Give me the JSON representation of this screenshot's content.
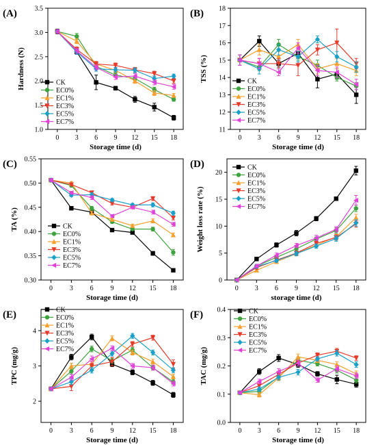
{
  "chart_data": [
    {
      "type": "line",
      "panel": "(A)",
      "xlabel": "Storage time (d)",
      "ylabel": "Hardness (N)",
      "x": [
        0,
        3,
        6,
        9,
        12,
        15,
        18
      ],
      "ylim": [
        1.0,
        3.5
      ],
      "yticks": [
        "1.0",
        "1.5",
        "2.0",
        "2.5",
        "3.0",
        "3.5"
      ],
      "legend_position": "bottom-left",
      "series": [
        {
          "name": "CK",
          "color": "#000000",
          "marker": "square",
          "values": [
            3.02,
            2.6,
            1.97,
            1.85,
            1.62,
            1.46,
            1.24
          ],
          "err": [
            0.05,
            0.05,
            0.15,
            0.04,
            0.06,
            0.08,
            0.05
          ]
        },
        {
          "name": "EC0%",
          "color": "#3ea33e",
          "marker": "circle",
          "values": [
            3.02,
            2.92,
            2.3,
            2.12,
            2.05,
            1.82,
            1.62
          ],
          "err": [
            0.04,
            0.06,
            0.05,
            0.04,
            0.04,
            0.05,
            0.04
          ]
        },
        {
          "name": "EC1%",
          "color": "#f5a030",
          "marker": "triangle-up",
          "values": [
            3.02,
            2.82,
            2.35,
            2.22,
            2.0,
            1.75,
            1.7
          ],
          "err": [
            0.04,
            0.05,
            0.05,
            0.05,
            0.05,
            0.05,
            0.04
          ]
        },
        {
          "name": "EC3%",
          "color": "#e63a2a",
          "marker": "triangle-down",
          "values": [
            3.02,
            2.65,
            2.35,
            2.32,
            2.23,
            2.15,
            2.0
          ],
          "err": [
            0.04,
            0.05,
            0.05,
            0.05,
            0.05,
            0.05,
            0.05
          ]
        },
        {
          "name": "EC5%",
          "color": "#1aa0c8",
          "marker": "diamond",
          "values": [
            3.02,
            2.6,
            2.25,
            2.23,
            2.22,
            2.05,
            2.1
          ],
          "err": [
            0.04,
            0.05,
            0.05,
            0.05,
            0.05,
            0.05,
            0.04
          ]
        },
        {
          "name": "EC7%",
          "color": "#e042d8",
          "marker": "triangle-left",
          "values": [
            3.02,
            2.62,
            2.28,
            2.08,
            2.1,
            1.97,
            1.88
          ],
          "err": [
            0.04,
            0.05,
            0.05,
            0.05,
            0.05,
            0.05,
            0.05
          ]
        }
      ]
    },
    {
      "type": "line",
      "panel": "(B)",
      "xlabel": "Storage time (d)",
      "ylabel": "TSS (%)",
      "x": [
        0,
        3,
        6,
        9,
        12,
        15,
        18
      ],
      "ylim": [
        11,
        18
      ],
      "yticks": [
        "11",
        "12",
        "13",
        "14",
        "15",
        "16",
        "17",
        "18"
      ],
      "legend_position": "bottom-left",
      "series": [
        {
          "name": "CK",
          "color": "#000000",
          "marker": "square",
          "values": [
            15.0,
            16.1,
            14.8,
            15.4,
            13.9,
            14.2,
            13.0
          ],
          "err": [
            0.3,
            0.3,
            0.2,
            0.3,
            0.5,
            0.3,
            0.5
          ]
        },
        {
          "name": "EC0%",
          "color": "#3ea33e",
          "marker": "circle",
          "values": [
            15.0,
            14.6,
            15.9,
            15.2,
            14.7,
            14.0,
            13.5
          ],
          "err": [
            0.3,
            0.2,
            0.3,
            0.2,
            0.3,
            0.2,
            0.2
          ]
        },
        {
          "name": "EC1%",
          "color": "#f5a030",
          "marker": "triangle-up",
          "values": [
            15.0,
            15.6,
            15.2,
            15.9,
            14.5,
            14.8,
            14.4
          ],
          "err": [
            0.3,
            0.3,
            0.3,
            0.3,
            0.3,
            0.3,
            0.3
          ]
        },
        {
          "name": "EC3%",
          "color": "#e63a2a",
          "marker": "triangle-down",
          "values": [
            15.0,
            14.8,
            14.8,
            14.7,
            15.6,
            16.0,
            14.8
          ],
          "err": [
            0.3,
            0.3,
            0.3,
            0.6,
            0.3,
            0.8,
            0.3
          ]
        },
        {
          "name": "EC5%",
          "color": "#1aa0c8",
          "marker": "diamond",
          "values": [
            15.0,
            14.5,
            15.6,
            15.2,
            16.2,
            15.2,
            14.6
          ],
          "err": [
            0.3,
            0.3,
            0.3,
            0.3,
            0.2,
            0.3,
            0.3
          ]
        },
        {
          "name": "EC7%",
          "color": "#e042d8",
          "marker": "triangle-left",
          "values": [
            15.0,
            14.8,
            14.3,
            15.7,
            14.4,
            14.3,
            13.6
          ],
          "err": [
            0.3,
            0.3,
            0.2,
            0.3,
            0.3,
            0.3,
            0.3
          ]
        }
      ]
    },
    {
      "type": "line",
      "panel": "(C)",
      "xlabel": "Storage time (d)",
      "ylabel": "TA (%)",
      "x": [
        0,
        3,
        6,
        9,
        12,
        15,
        18
      ],
      "ylim": [
        0.3,
        0.55
      ],
      "yticks": [
        "0.30",
        "0.35",
        "0.40",
        "0.45",
        "0.50",
        "0.55"
      ],
      "legend_position": "bottom-left",
      "series": [
        {
          "name": "CK",
          "color": "#000000",
          "marker": "square",
          "values": [
            0.506,
            0.448,
            0.44,
            0.403,
            0.398,
            0.355,
            0.32
          ],
          "err": [
            0.003,
            0.003,
            0.004,
            0.003,
            0.003,
            0.004,
            0.003
          ]
        },
        {
          "name": "EC0%",
          "color": "#3ea33e",
          "marker": "circle",
          "values": [
            0.506,
            0.495,
            0.448,
            0.42,
            0.405,
            0.405,
            0.357
          ],
          "err": [
            0.003,
            0.003,
            0.004,
            0.003,
            0.003,
            0.004,
            0.006
          ]
        },
        {
          "name": "EC1%",
          "color": "#f5a030",
          "marker": "triangle-up",
          "values": [
            0.506,
            0.5,
            0.438,
            0.425,
            0.412,
            0.422,
            0.393
          ],
          "err": [
            0.003,
            0.003,
            0.004,
            0.003,
            0.003,
            0.004,
            0.004
          ]
        },
        {
          "name": "EC3%",
          "color": "#e63a2a",
          "marker": "triangle-down",
          "values": [
            0.506,
            0.497,
            0.48,
            0.458,
            0.45,
            0.468,
            0.428
          ],
          "err": [
            0.003,
            0.003,
            0.004,
            0.003,
            0.003,
            0.004,
            0.004
          ]
        },
        {
          "name": "EC5%",
          "color": "#1aa0c8",
          "marker": "diamond",
          "values": [
            0.506,
            0.475,
            0.476,
            0.465,
            0.455,
            0.455,
            0.438
          ],
          "err": [
            0.003,
            0.003,
            0.004,
            0.003,
            0.003,
            0.004,
            0.004
          ]
        },
        {
          "name": "EC7%",
          "color": "#e042d8",
          "marker": "triangle-left",
          "values": [
            0.506,
            0.48,
            0.47,
            0.432,
            0.45,
            0.44,
            0.415
          ],
          "err": [
            0.003,
            0.003,
            0.004,
            0.003,
            0.003,
            0.004,
            0.004
          ]
        }
      ]
    },
    {
      "type": "line",
      "panel": "(D)",
      "xlabel": "storage time (d)",
      "ylabel": "Weight loss rate (%)",
      "x": [
        0,
        3,
        6,
        9,
        12,
        15,
        18
      ],
      "ylim": [
        0,
        22.5
      ],
      "yticks": [
        "0",
        "5",
        "10",
        "15",
        "20"
      ],
      "legend_position": "top-left",
      "series": [
        {
          "name": "CK",
          "color": "#000000",
          "marker": "square",
          "values": [
            0,
            3.9,
            6.5,
            8.7,
            11.4,
            15.1,
            20.3
          ],
          "err": [
            0.1,
            0.3,
            0.4,
            0.5,
            0.4,
            0.3,
            0.8
          ]
        },
        {
          "name": "EC0%",
          "color": "#3ea33e",
          "marker": "circle",
          "values": [
            0,
            2.6,
            4.2,
            5.8,
            7.6,
            9.2,
            13.3
          ],
          "err": [
            0.1,
            0.3,
            0.4,
            0.4,
            0.4,
            0.5,
            0.6
          ]
        },
        {
          "name": "EC1%",
          "color": "#f5a030",
          "marker": "triangle-up",
          "values": [
            0,
            1.8,
            3.4,
            4.9,
            6.5,
            8.0,
            11.6
          ],
          "err": [
            0.1,
            0.3,
            0.3,
            0.4,
            0.4,
            0.5,
            0.6
          ]
        },
        {
          "name": "EC3%",
          "color": "#e63a2a",
          "marker": "triangle-down",
          "values": [
            0,
            2.3,
            3.7,
            5.0,
            6.8,
            7.9,
            10.4
          ],
          "err": [
            0.1,
            0.3,
            0.3,
            0.4,
            0.4,
            0.5,
            0.6
          ]
        },
        {
          "name": "EC5%",
          "color": "#1aa0c8",
          "marker": "diamond",
          "values": [
            0,
            2.5,
            3.6,
            4.9,
            6.3,
            7.7,
            10.6
          ],
          "err": [
            0.1,
            0.3,
            0.3,
            0.4,
            0.4,
            0.5,
            0.6
          ]
        },
        {
          "name": "EC7%",
          "color": "#e042d8",
          "marker": "triangle-left",
          "values": [
            0,
            2.6,
            4.6,
            6.4,
            7.8,
            9.4,
            14.8
          ],
          "err": [
            0.1,
            0.3,
            0.4,
            0.4,
            0.5,
            0.5,
            0.9
          ]
        }
      ]
    },
    {
      "type": "line",
      "panel": "(E)",
      "xlabel": "Storage time (d)",
      "ylabel": "TPC (mg/g)",
      "x": [
        0,
        3,
        6,
        9,
        12,
        15,
        18
      ],
      "ylim": [
        1.4,
        4.6
      ],
      "yticks": [
        "2",
        "3",
        "4"
      ],
      "legend_position": "top-left",
      "series": [
        {
          "name": "CK",
          "color": "#000000",
          "marker": "square",
          "values": [
            2.35,
            3.25,
            3.82,
            3.05,
            2.82,
            2.52,
            2.18
          ],
          "err": [
            0.04,
            0.08,
            0.08,
            0.07,
            0.07,
            0.07,
            0.07
          ]
        },
        {
          "name": "EC0%",
          "color": "#3ea33e",
          "marker": "circle",
          "values": [
            2.35,
            2.85,
            3.48,
            3.15,
            3.45,
            2.95,
            2.55
          ],
          "err": [
            0.04,
            0.08,
            0.08,
            0.07,
            0.07,
            0.07,
            0.07
          ]
        },
        {
          "name": "EC1%",
          "color": "#f5a030",
          "marker": "triangle-up",
          "values": [
            2.35,
            3.0,
            3.05,
            3.78,
            3.38,
            3.12,
            2.7
          ],
          "err": [
            0.04,
            0.08,
            0.08,
            0.07,
            0.07,
            0.07,
            0.07
          ]
        },
        {
          "name": "EC3%",
          "color": "#e63a2a",
          "marker": "triangle-down",
          "values": [
            2.35,
            2.42,
            3.0,
            3.12,
            3.62,
            3.8,
            3.05
          ],
          "err": [
            0.04,
            0.12,
            0.08,
            0.12,
            0.07,
            0.07,
            0.12
          ]
        },
        {
          "name": "EC5%",
          "color": "#1aa0c8",
          "marker": "diamond",
          "values": [
            2.35,
            2.55,
            2.88,
            3.35,
            3.85,
            3.38,
            2.88
          ],
          "err": [
            0.04,
            0.08,
            0.08,
            0.07,
            0.07,
            0.07,
            0.07
          ]
        },
        {
          "name": "EC7%",
          "color": "#e042d8",
          "marker": "triangle-left",
          "values": [
            2.35,
            2.68,
            3.2,
            3.5,
            3.0,
            2.95,
            2.5
          ],
          "err": [
            0.04,
            0.08,
            0.08,
            0.07,
            0.07,
            0.07,
            0.07
          ]
        }
      ]
    },
    {
      "type": "line",
      "panel": "(F)",
      "xlabel": "Storage time (d)",
      "ylabel": "TAC (mg/g)",
      "x": [
        0,
        3,
        6,
        9,
        12,
        15,
        18
      ],
      "ylim": [
        0.0,
        0.4
      ],
      "yticks": [
        "0.0",
        "0.1",
        "0.2",
        "0.3",
        "0.4"
      ],
      "legend_position": "top-left",
      "series": [
        {
          "name": "CK",
          "color": "#000000",
          "marker": "square",
          "values": [
            0.105,
            0.18,
            0.228,
            0.205,
            0.172,
            0.152,
            0.135
          ],
          "err": [
            0.004,
            0.01,
            0.012,
            0.01,
            0.008,
            0.015,
            0.01
          ]
        },
        {
          "name": "EC0%",
          "color": "#3ea33e",
          "marker": "circle",
          "values": [
            0.105,
            0.11,
            0.162,
            0.22,
            0.208,
            0.185,
            0.15
          ],
          "err": [
            0.004,
            0.008,
            0.01,
            0.01,
            0.008,
            0.01,
            0.01
          ]
        },
        {
          "name": "EC1%",
          "color": "#f5a030",
          "marker": "triangle-up",
          "values": [
            0.105,
            0.098,
            0.158,
            0.232,
            0.22,
            0.205,
            0.172
          ],
          "err": [
            0.004,
            0.008,
            0.01,
            0.01,
            0.008,
            0.01,
            0.01
          ]
        },
        {
          "name": "EC3%",
          "color": "#e63a2a",
          "marker": "triangle-down",
          "values": [
            0.105,
            0.13,
            0.17,
            0.21,
            0.238,
            0.252,
            0.228
          ],
          "err": [
            0.004,
            0.008,
            0.01,
            0.01,
            0.008,
            0.01,
            0.008
          ]
        },
        {
          "name": "EC5%",
          "color": "#1aa0c8",
          "marker": "diamond",
          "values": [
            0.105,
            0.118,
            0.16,
            0.178,
            0.225,
            0.245,
            0.205
          ],
          "err": [
            0.004,
            0.008,
            0.01,
            0.01,
            0.008,
            0.01,
            0.01
          ]
        },
        {
          "name": "EC7%",
          "color": "#e042d8",
          "marker": "triangle-left",
          "values": [
            0.105,
            0.145,
            0.18,
            0.21,
            0.15,
            0.19,
            0.165
          ],
          "err": [
            0.004,
            0.008,
            0.01,
            0.01,
            0.008,
            0.01,
            0.01
          ]
        }
      ]
    }
  ]
}
